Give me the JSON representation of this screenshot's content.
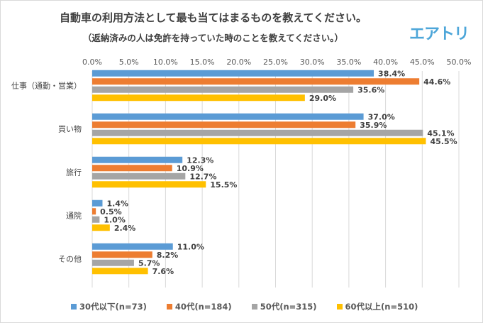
{
  "chart_data": {
    "type": "bar",
    "orientation": "horizontal",
    "title": "自動車の利用方法として最も当てはまるものを教えてください。",
    "subtitle": "（返納済みの人は免許を持っていた時のことを教えてください。）",
    "categories": [
      "仕事（通勤・営業）",
      "買い物",
      "旅行",
      "通院",
      "その他"
    ],
    "xlim": [
      0,
      50
    ],
    "x_ticks": [
      "0.0%",
      "5.0%",
      "10.0%",
      "15.0%",
      "20.0%",
      "25.0%",
      "30.0%",
      "35.0%",
      "40.0%",
      "45.0%",
      "50.0%"
    ],
    "x_axis_position": "top",
    "grid": true,
    "legend_position": "bottom",
    "series": [
      {
        "name": "30代以下(n=73)",
        "color": "#5b9bd5",
        "values": [
          38.4,
          37.0,
          12.3,
          1.4,
          11.0
        ]
      },
      {
        "name": "40代(n=184)",
        "color": "#ed7d31",
        "values": [
          44.6,
          35.9,
          10.9,
          0.5,
          8.2
        ]
      },
      {
        "name": "50代(n=315)",
        "color": "#a5a5a5",
        "values": [
          35.6,
          45.1,
          12.7,
          1.0,
          5.7
        ]
      },
      {
        "name": "60代以上(n=510)",
        "color": "#ffc000",
        "values": [
          29.0,
          45.5,
          15.5,
          2.4,
          7.6
        ]
      }
    ]
  },
  "logo": "エアトリ"
}
